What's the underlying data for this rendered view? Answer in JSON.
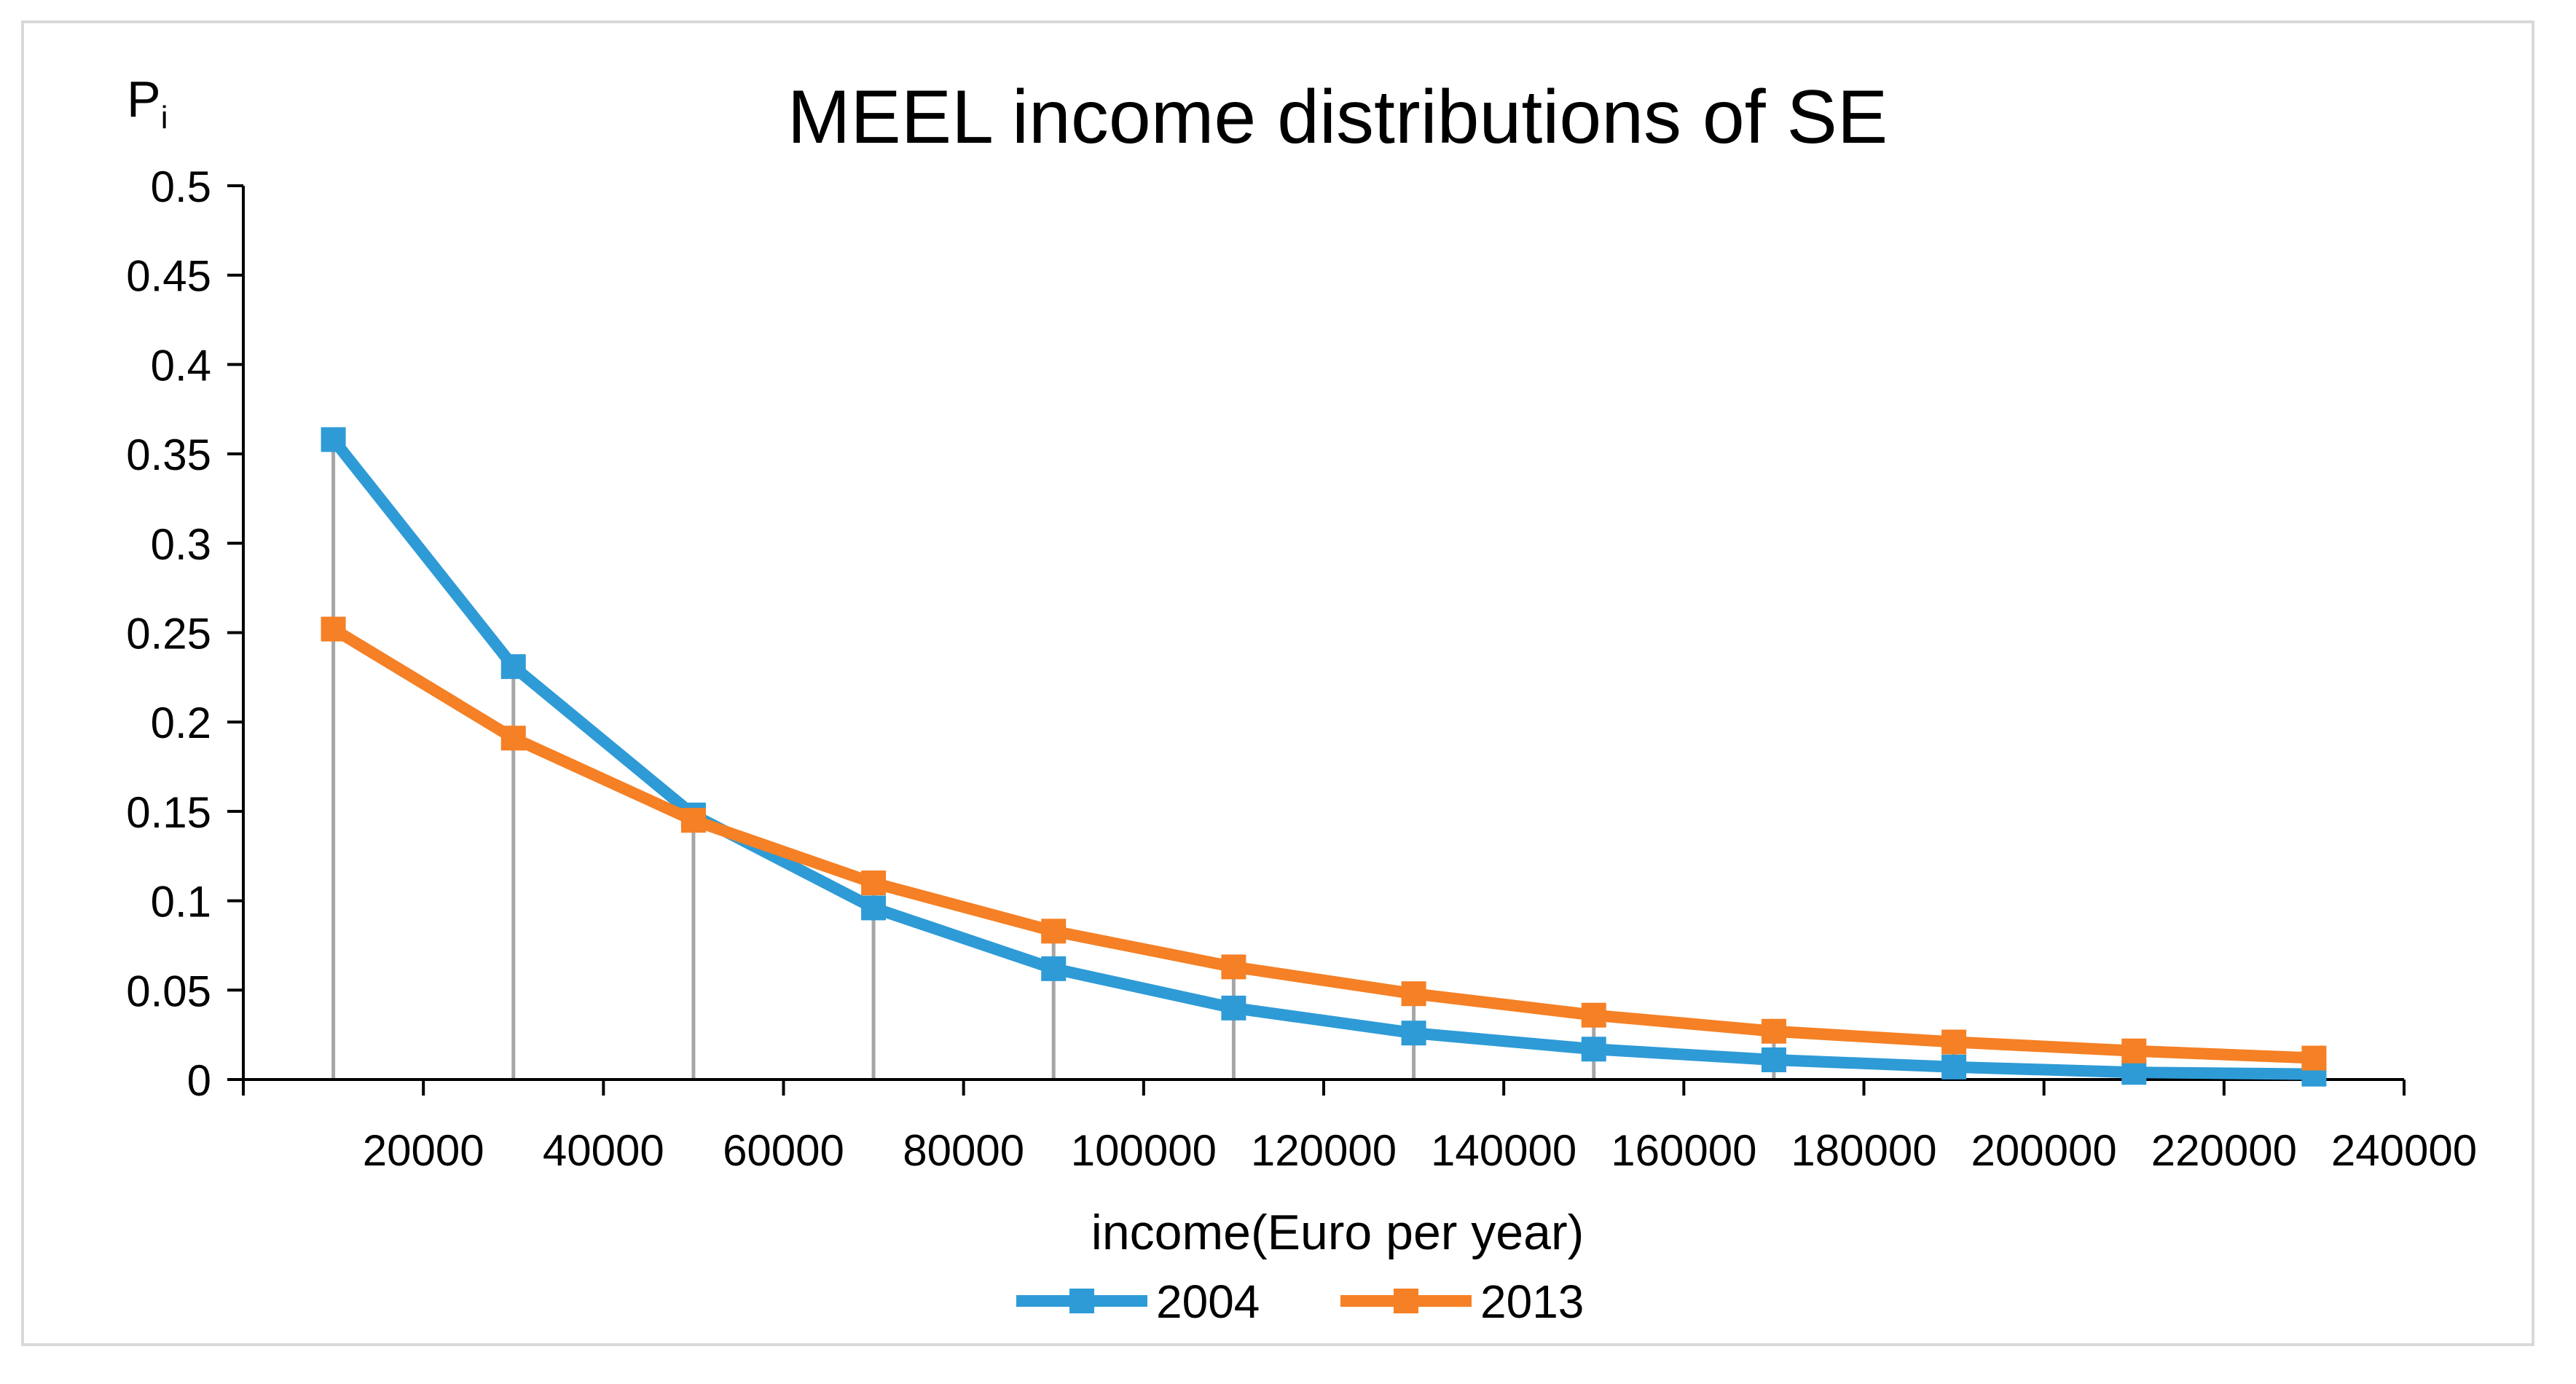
{
  "chart_data": {
    "type": "line",
    "title": "MEEL income distributions of SE",
    "xlabel": "income(Euro per year)",
    "ylabel": "P",
    "ylabel_subscript": "i",
    "xlim": [
      0,
      240000
    ],
    "ylim": [
      0,
      0.5
    ],
    "x_ticks": [
      20000,
      40000,
      60000,
      80000,
      100000,
      120000,
      140000,
      160000,
      180000,
      200000,
      220000,
      240000
    ],
    "x_tick_labels": [
      "20000",
      "40000",
      "60000",
      "80000",
      "100000",
      "120000",
      "140000",
      "160000",
      "180000",
      "200000",
      "220000",
      "240000"
    ],
    "y_ticks": [
      0,
      0.05,
      0.1,
      0.15,
      0.2,
      0.25,
      0.3,
      0.35,
      0.4,
      0.45,
      0.5
    ],
    "y_tick_labels": [
      "0",
      "0.05",
      "0.1",
      "0.15",
      "0.2",
      "0.25",
      "0.3",
      "0.35",
      "0.4",
      "0.45",
      "0.5"
    ],
    "x": [
      10000,
      30000,
      50000,
      70000,
      90000,
      110000,
      130000,
      150000,
      170000,
      190000,
      210000,
      230000
    ],
    "series": [
      {
        "name": "2004",
        "color": "#2e9bd6",
        "values": [
          0.358,
          0.231,
          0.148,
          0.096,
          0.062,
          0.04,
          0.026,
          0.017,
          0.011,
          0.007,
          0.004,
          0.003
        ]
      },
      {
        "name": "2013",
        "color": "#f58025",
        "values": [
          0.252,
          0.191,
          0.145,
          0.11,
          0.083,
          0.063,
          0.048,
          0.036,
          0.027,
          0.021,
          0.016,
          0.012
        ]
      }
    ],
    "drop_lines": true,
    "drop_line_color": "#a6a6a6",
    "legend_position": "bottom",
    "grid": false
  }
}
